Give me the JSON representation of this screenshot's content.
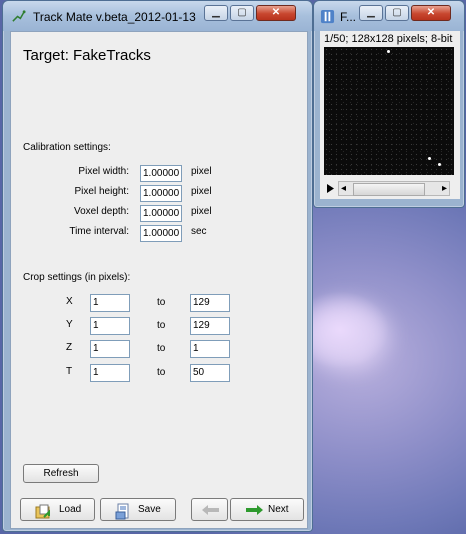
{
  "trackmate_window": {
    "title": "Track Mate v.beta_2012-01-13",
    "target_label": "Target: FakeTracks",
    "calibration": {
      "heading": "Calibration settings:",
      "rows": [
        {
          "label": "Pixel width:",
          "value": "1.00000",
          "unit": "pixel"
        },
        {
          "label": "Pixel height:",
          "value": "1.00000",
          "unit": "pixel"
        },
        {
          "label": "Voxel depth:",
          "value": "1.00000",
          "unit": "pixel"
        },
        {
          "label": "Time interval:",
          "value": "1.00000",
          "unit": "sec"
        }
      ]
    },
    "crop": {
      "heading": "Crop settings (in pixels):",
      "to_label": "to",
      "rows": [
        {
          "label": "X",
          "from": "1",
          "to": "129"
        },
        {
          "label": "Y",
          "from": "1",
          "to": "129"
        },
        {
          "label": "Z",
          "from": "1",
          "to": "1"
        },
        {
          "label": "T",
          "from": "1",
          "to": "50"
        }
      ]
    },
    "buttons": {
      "refresh": "Refresh",
      "load": "Load",
      "save": "Save",
      "next": "Next"
    }
  },
  "image_window": {
    "title": "F...",
    "info": "1/50; 128x128 pixels; 8-bit"
  },
  "icons": {
    "trackmate_title": "trackmate-icon",
    "image_title": "imagej-icon",
    "load": "load-folder-icon",
    "save": "save-disk-icon",
    "prev": "arrow-left-icon",
    "next": "arrow-right-icon",
    "play": "play-icon"
  },
  "colors": {
    "accent_green": "#2e9a2e",
    "titlebar": "#a7bfdc",
    "close_red": "#c8472f"
  }
}
